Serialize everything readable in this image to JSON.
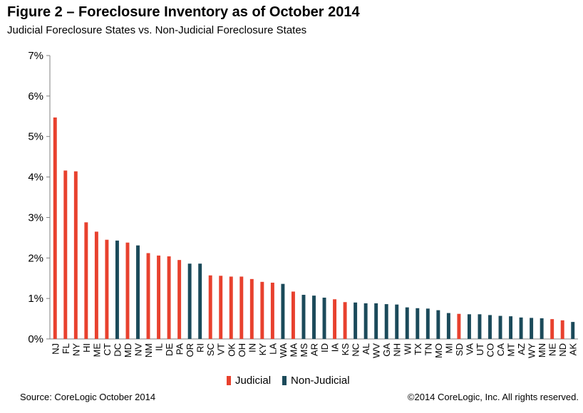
{
  "header": {
    "title": "Figure 2 – Foreclosure Inventory as of October 2014",
    "subtitle": "Judicial Foreclosure States vs. Non-Judicial Foreclosure States"
  },
  "footer": {
    "source": "Source: CoreLogic  October 2014",
    "copyright": "©2014 CoreLogic, Inc. All rights reserved."
  },
  "colors": {
    "Judicial": "#e8412e",
    "Non-Judicial": "#1b4a5a"
  },
  "chart_data": {
    "type": "bar",
    "title": "Figure 2 – Foreclosure Inventory as of October 2014",
    "subtitle": "Judicial Foreclosure States vs. Non-Judicial Foreclosure States",
    "ylim": [
      0,
      7
    ],
    "yticks": [
      "0%",
      "1%",
      "2%",
      "3%",
      "4%",
      "5%",
      "6%",
      "7%"
    ],
    "legend_position": "bottom",
    "legend": [
      "Judicial",
      "Non-Judicial"
    ],
    "grid": false,
    "categories": [
      "NJ",
      "FL",
      "NY",
      "HI",
      "ME",
      "CT",
      "DC",
      "MD",
      "NV",
      "NM",
      "IL",
      "DE",
      "PA",
      "OR",
      "RI",
      "SC",
      "VT",
      "OK",
      "OH",
      "IN",
      "KY",
      "LA",
      "WA",
      "MA",
      "MS",
      "AR",
      "ID",
      "IA",
      "KS",
      "NC",
      "AL",
      "WV",
      "GA",
      "NH",
      "WI",
      "TX",
      "TN",
      "MO",
      "MI",
      "SD",
      "VA",
      "UT",
      "CO",
      "CA",
      "MT",
      "AZ",
      "WY",
      "MN",
      "NE",
      "ND",
      "AK"
    ],
    "values": [
      5.47,
      4.16,
      4.14,
      2.88,
      2.65,
      2.45,
      2.43,
      2.38,
      2.31,
      2.12,
      2.06,
      2.04,
      1.95,
      1.86,
      1.86,
      1.57,
      1.56,
      1.54,
      1.54,
      1.48,
      1.41,
      1.39,
      1.36,
      1.17,
      1.09,
      1.07,
      1.02,
      0.98,
      0.91,
      0.9,
      0.88,
      0.88,
      0.86,
      0.85,
      0.78,
      0.76,
      0.75,
      0.71,
      0.64,
      0.62,
      0.61,
      0.61,
      0.59,
      0.57,
      0.56,
      0.53,
      0.52,
      0.51,
      0.49,
      0.46,
      0.42
    ],
    "groups": [
      "Judicial",
      "Judicial",
      "Judicial",
      "Judicial",
      "Judicial",
      "Judicial",
      "Non-Judicial",
      "Judicial",
      "Non-Judicial",
      "Judicial",
      "Judicial",
      "Judicial",
      "Judicial",
      "Non-Judicial",
      "Non-Judicial",
      "Judicial",
      "Judicial",
      "Judicial",
      "Judicial",
      "Judicial",
      "Judicial",
      "Judicial",
      "Non-Judicial",
      "Judicial",
      "Non-Judicial",
      "Non-Judicial",
      "Non-Judicial",
      "Judicial",
      "Judicial",
      "Non-Judicial",
      "Non-Judicial",
      "Non-Judicial",
      "Non-Judicial",
      "Non-Judicial",
      "Non-Judicial",
      "Non-Judicial",
      "Non-Judicial",
      "Non-Judicial",
      "Non-Judicial",
      "Judicial",
      "Non-Judicial",
      "Non-Judicial",
      "Non-Judicial",
      "Non-Judicial",
      "Non-Judicial",
      "Non-Judicial",
      "Non-Judicial",
      "Non-Judicial",
      "Judicial",
      "Judicial",
      "Non-Judicial"
    ]
  }
}
